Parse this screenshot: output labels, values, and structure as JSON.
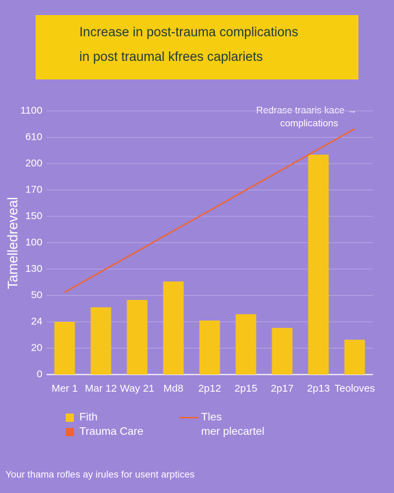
{
  "chart_data": {
    "type": "bar",
    "title": [
      "Increase in post-trauma complications",
      "in post traumal kfrees caplariets"
    ],
    "ylabel": "Tamelledreveal",
    "annotation": [
      "Redrase traaris kace →",
      "complications"
    ],
    "categories": [
      "Mer 1",
      "Mar 12",
      "Way 21",
      "Md8",
      "2p12",
      "2p15",
      "2p17",
      "2p13",
      "Teoloves"
    ],
    "series": [
      {
        "name": "Fith",
        "color": "#f7c51a",
        "type": "bar",
        "values": [
          2.0,
          2.55,
          2.83,
          3.53,
          2.05,
          2.29,
          1.77,
          8.34,
          1.32
        ]
      },
      {
        "name": "Tles",
        "color": "#f0652c",
        "type": "line",
        "values": [
          3.12,
          3.9,
          4.67,
          5.45,
          6.22,
          7.0,
          7.77,
          8.55,
          9.32
        ]
      }
    ],
    "extra_legend": [
      {
        "name": "Trauma Care",
        "color": "#f0652c"
      }
    ],
    "legend_note": "mer plecartel",
    "footer": "Your thama rofles ay irules for usent arptices",
    "ylim": [
      0,
      10
    ],
    "yticks": [
      {
        "value": 0,
        "label": "0"
      },
      {
        "value": 1,
        "label": "20"
      },
      {
        "value": 2,
        "label": "24"
      },
      {
        "value": 3,
        "label": "50"
      },
      {
        "value": 4,
        "label": "130"
      },
      {
        "value": 5,
        "label": "100"
      },
      {
        "value": 6,
        "label": "150"
      },
      {
        "value": 7,
        "label": "170"
      },
      {
        "value": 8,
        "label": "200"
      },
      {
        "value": 9,
        "label": "610"
      },
      {
        "value": 10,
        "label": "1100"
      }
    ],
    "grid": true
  }
}
